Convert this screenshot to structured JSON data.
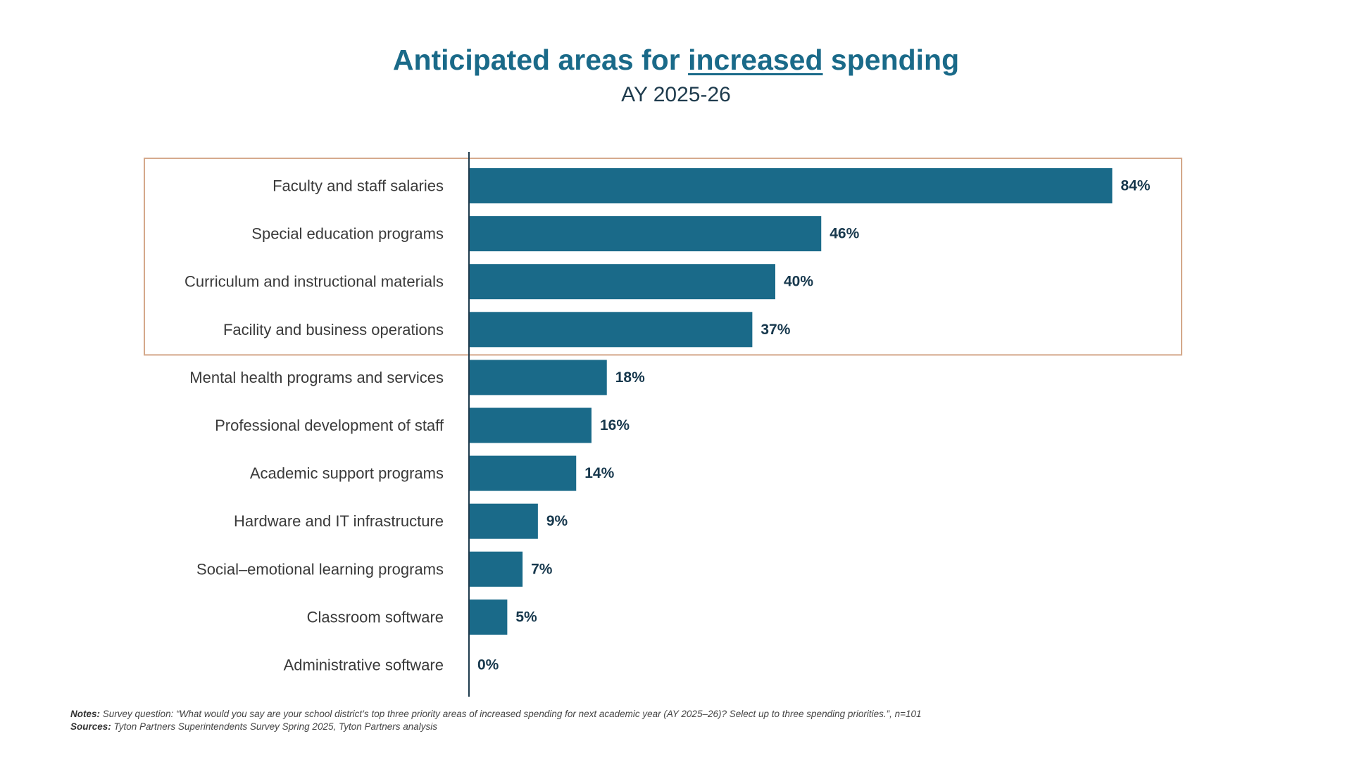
{
  "title": {
    "before": "Anticipated areas for ",
    "emphasis": "increased",
    "after": " spending"
  },
  "subtitle": "AY 2025-26",
  "chart_data": {
    "type": "bar",
    "orientation": "horizontal",
    "categories": [
      "Faculty and staff salaries",
      "Special education programs",
      "Curriculum and instructional materials",
      "Facility and business operations",
      "Mental health programs and services",
      "Professional development of staff",
      "Academic support programs",
      "Hardware and IT infrastructure",
      "Social–emotional learning programs",
      "Classroom software",
      "Administrative software"
    ],
    "values": [
      84,
      46,
      40,
      37,
      18,
      16,
      14,
      9,
      7,
      5,
      0
    ],
    "value_labels": [
      "84%",
      "46%",
      "40%",
      "37%",
      "18%",
      "16%",
      "14%",
      "9%",
      "7%",
      "5%",
      "0%"
    ],
    "unit": "%",
    "xlim": [
      0,
      100
    ],
    "grid": false,
    "legend": "none",
    "highlighted_categories": 4
  },
  "notes": {
    "label": "Notes:",
    "text": " Survey question: “What would you say are your school district’s top three priority areas of increased spending for next academic year (AY 2025–26)? Select up to three spending priorities.”, n=101"
  },
  "sources": {
    "label": "Sources:",
    "text": " Tyton Partners Superintendents Survey Spring 2025, Tyton Partners analysis"
  },
  "colors": {
    "bar": "#1a6a89",
    "title": "#1a6a89",
    "highlight_box": "#d4a88a",
    "axis": "#1e3b4d"
  }
}
